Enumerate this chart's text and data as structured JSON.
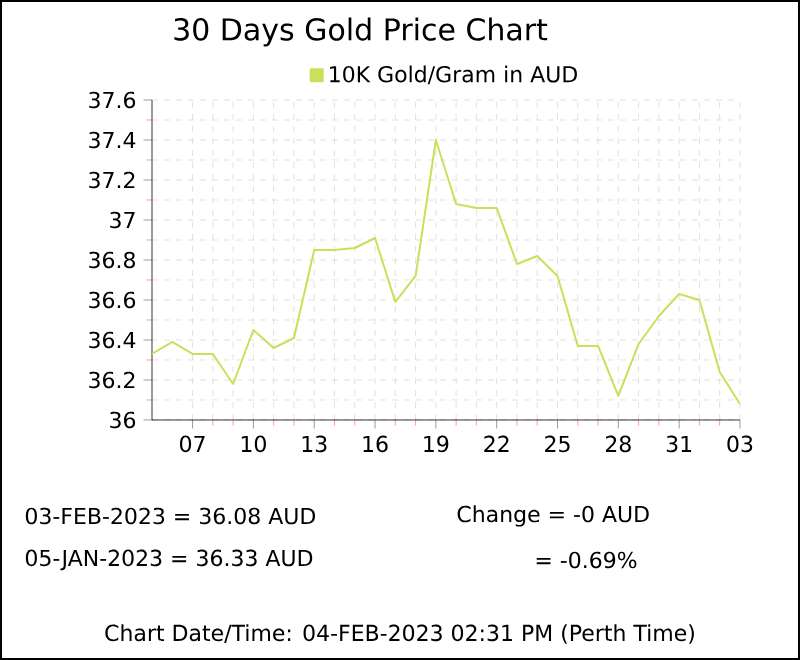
{
  "chart_data": {
    "type": "line",
    "title": "30 Days Gold Price Chart",
    "x": [
      "2023-01-05",
      "2023-01-06",
      "2023-01-07",
      "2023-01-08",
      "2023-01-09",
      "2023-01-10",
      "2023-01-11",
      "2023-01-12",
      "2023-01-13",
      "2023-01-14",
      "2023-01-15",
      "2023-01-16",
      "2023-01-17",
      "2023-01-18",
      "2023-01-19",
      "2023-01-20",
      "2023-01-21",
      "2023-01-22",
      "2023-01-23",
      "2023-01-24",
      "2023-01-25",
      "2023-01-26",
      "2023-01-27",
      "2023-01-28",
      "2023-01-29",
      "2023-01-30",
      "2023-01-31",
      "2023-02-01",
      "2023-02-02",
      "2023-02-03"
    ],
    "series": [
      {
        "name": "10K Gold/Gram  in AUD",
        "color": "#c8e05a",
        "values": [
          36.33,
          36.39,
          36.33,
          36.33,
          36.18,
          36.45,
          36.36,
          36.41,
          36.85,
          36.85,
          36.86,
          36.91,
          36.59,
          36.72,
          37.4,
          37.08,
          37.06,
          37.06,
          36.78,
          36.82,
          36.72,
          36.37,
          36.37,
          36.12,
          36.38,
          36.52,
          36.63,
          36.6,
          36.24,
          36.08
        ]
      }
    ],
    "xlim": [
      "2023-01-05",
      "2023-02-03"
    ],
    "xticks": [
      {
        "value": "2023-01-07",
        "label": "07"
      },
      {
        "value": "2023-01-10",
        "label": "10"
      },
      {
        "value": "2023-01-13",
        "label": "13"
      },
      {
        "value": "2023-01-16",
        "label": "16"
      },
      {
        "value": "2023-01-19",
        "label": "19"
      },
      {
        "value": "2023-01-22",
        "label": "22"
      },
      {
        "value": "2023-01-25",
        "label": "25"
      },
      {
        "value": "2023-01-28",
        "label": "28"
      },
      {
        "value": "2023-01-31",
        "label": "31"
      },
      {
        "value": "2023-02-03",
        "label": "03"
      }
    ],
    "ylim": [
      36,
      37.6
    ],
    "yticks": [
      36,
      36.2,
      36.4,
      36.6,
      36.8,
      37,
      37.2,
      37.4,
      37.6
    ],
    "grid": true,
    "legend": "top",
    "line_style": "solid",
    "annotations": [
      "03-FEB-2023 = 36.08 AUD",
      "05-JAN-2023 = 36.33 AUD",
      "Change = -0 AUD",
      "= -0.69%",
      "Chart Date/Time: 04-FEB-2023 02:31 PM (Perth Time)"
    ]
  }
}
